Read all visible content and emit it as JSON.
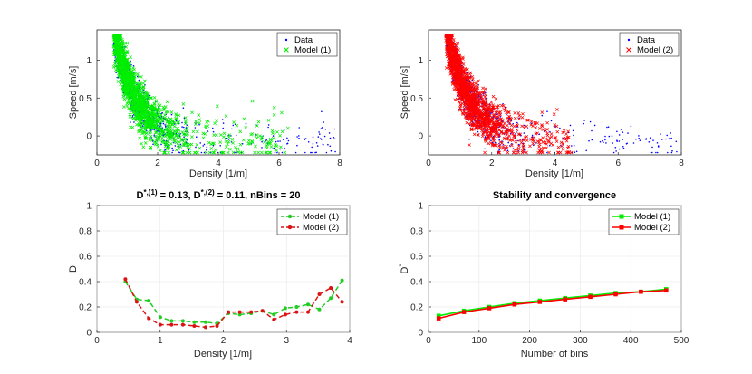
{
  "colors": {
    "data": "#0000ff",
    "model1": "#00ee00",
    "model2": "#ff0000",
    "model1_dashed": "#22cc22",
    "model2_dashed": "#dd1111"
  },
  "chart_data": [
    {
      "type": "scatter",
      "xlabel": "Density [1/m]",
      "ylabel": "Speed [m/s]",
      "xlim": [
        0,
        8
      ],
      "ylim": [
        -0.25,
        1.4
      ],
      "xticks": [
        "0",
        "2",
        "4",
        "6",
        "8"
      ],
      "yticks": [
        "0",
        "0.5",
        "1"
      ],
      "legend_position": "top-right",
      "series": [
        {
          "name": "Data",
          "marker": "dot"
        },
        {
          "name": "Model (1)",
          "marker": "x"
        }
      ]
    },
    {
      "type": "scatter",
      "xlabel": "Density [1/m]",
      "ylabel": "Speed [m/s]",
      "xlim": [
        0,
        8
      ],
      "ylim": [
        -0.25,
        1.4
      ],
      "xticks": [
        "0",
        "2",
        "4",
        "6",
        "8"
      ],
      "yticks": [
        "0",
        "0.5",
        "1"
      ],
      "legend_position": "top-right",
      "series": [
        {
          "name": "Data",
          "marker": "dot"
        },
        {
          "name": "Model (2)",
          "marker": "x"
        }
      ]
    },
    {
      "type": "line",
      "title_parts": {
        "a": "D",
        "a_sup": "*,(1)",
        "b": " = 0.13, D",
        "b_sup": "*,(2)",
        "c": " = 0.11, nBins = 20"
      },
      "xlabel": "Density [1/m]",
      "ylabel": "D",
      "xlim": [
        0,
        4
      ],
      "ylim": [
        0,
        1
      ],
      "xticks": [
        "0",
        "1",
        "2",
        "3",
        "4"
      ],
      "yticks": [
        "0",
        "0.2",
        "0.4",
        "0.6",
        "0.8",
        "1"
      ],
      "grid": true,
      "legend_position": "top-right",
      "x": [
        0.45,
        0.63,
        0.82,
        1.0,
        1.18,
        1.36,
        1.54,
        1.72,
        1.9,
        2.08,
        2.26,
        2.44,
        2.62,
        2.8,
        2.98,
        3.16,
        3.34,
        3.52,
        3.7,
        3.88
      ],
      "series": [
        {
          "name": "Model (1)",
          "values": [
            0.4,
            0.26,
            0.25,
            0.12,
            0.09,
            0.09,
            0.08,
            0.08,
            0.07,
            0.15,
            0.14,
            0.15,
            0.17,
            0.14,
            0.19,
            0.2,
            0.22,
            0.18,
            0.27,
            0.41
          ]
        },
        {
          "name": "Model (2)",
          "values": [
            0.42,
            0.24,
            0.11,
            0.06,
            0.06,
            0.06,
            0.05,
            0.04,
            0.05,
            0.16,
            0.16,
            0.16,
            0.17,
            0.1,
            0.14,
            0.16,
            0.16,
            0.3,
            0.35,
            0.24
          ]
        }
      ]
    },
    {
      "type": "line",
      "title": "Stability and convergence",
      "xlabel": "Number of bins",
      "ylabel": "D",
      "ylabel_sup": "*",
      "xlim": [
        0,
        500
      ],
      "ylim": [
        0,
        1
      ],
      "xticks": [
        "0",
        "100",
        "200",
        "300",
        "400",
        "500"
      ],
      "yticks": [
        "0",
        "0.2",
        "0.4",
        "0.6",
        "0.8",
        "1"
      ],
      "grid": true,
      "legend_position": "top-right",
      "x": [
        20,
        70,
        120,
        170,
        220,
        270,
        320,
        370,
        420,
        470
      ],
      "series": [
        {
          "name": "Model (1)",
          "values": [
            0.13,
            0.17,
            0.2,
            0.23,
            0.25,
            0.27,
            0.29,
            0.31,
            0.32,
            0.34
          ]
        },
        {
          "name": "Model (2)",
          "values": [
            0.11,
            0.16,
            0.19,
            0.22,
            0.24,
            0.26,
            0.28,
            0.3,
            0.32,
            0.33
          ]
        }
      ]
    }
  ]
}
